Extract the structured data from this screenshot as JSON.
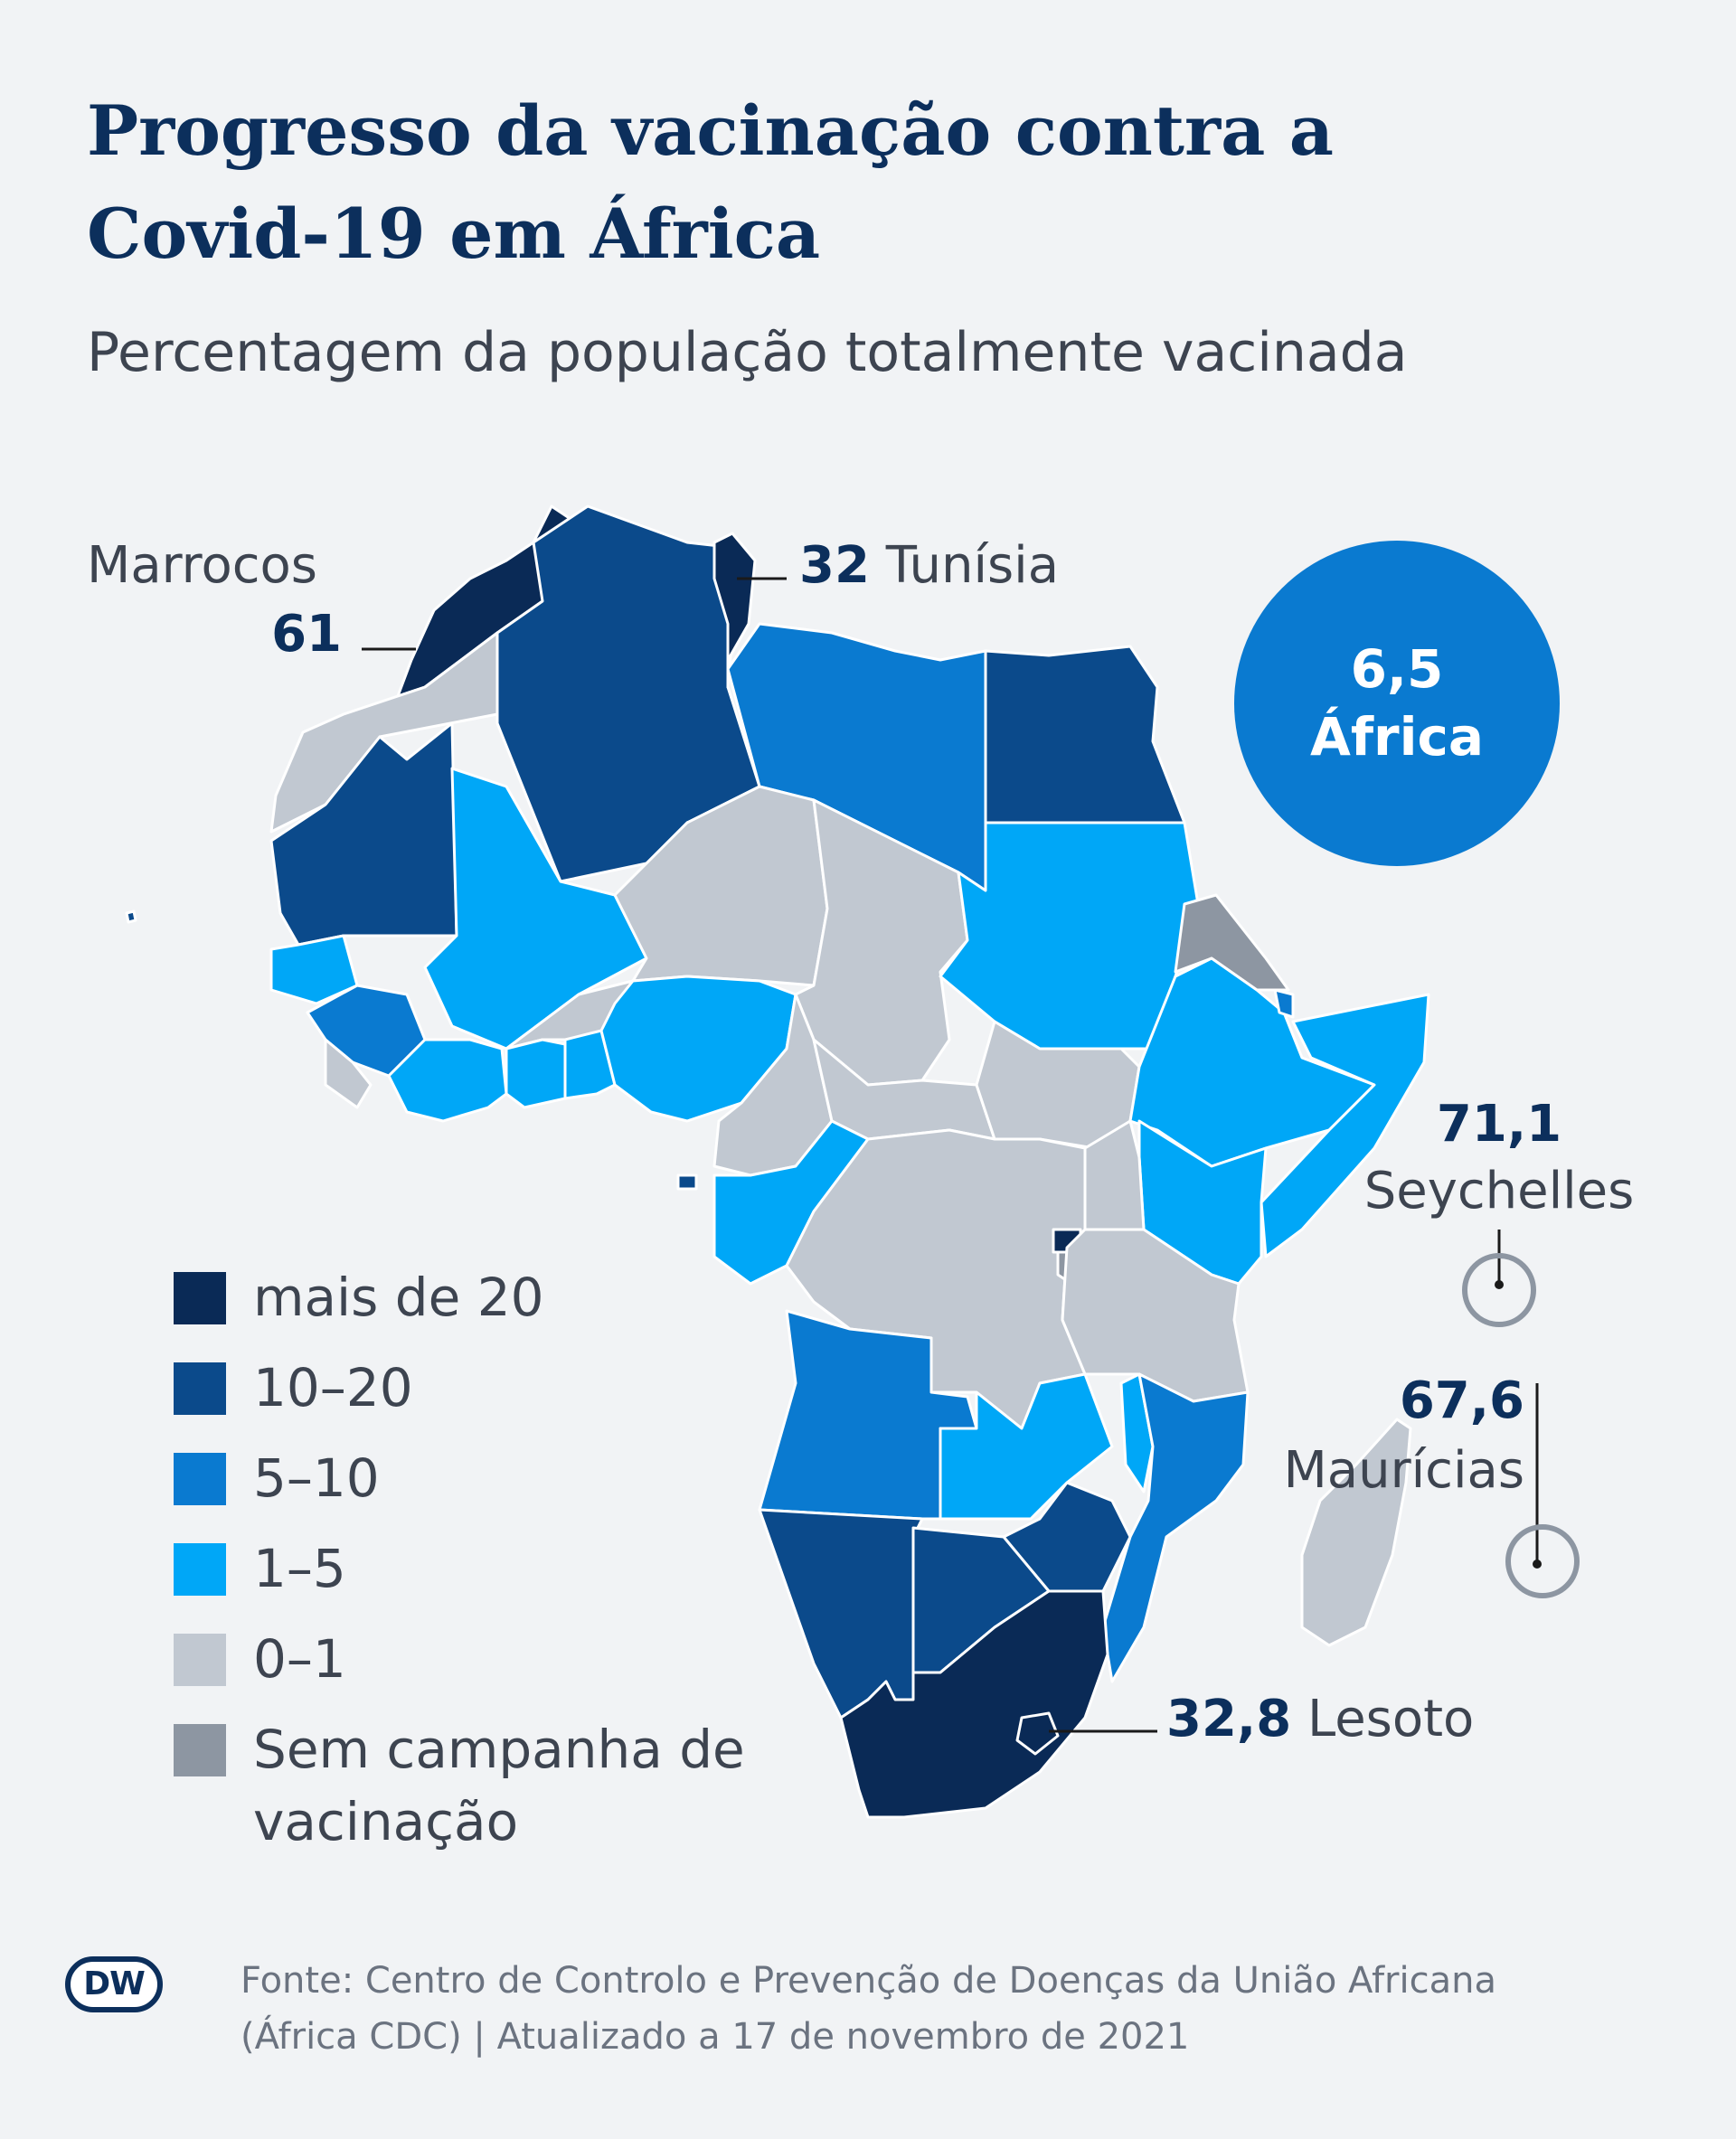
{
  "header": {
    "title": "Progresso da vacinação contra a Covid-19 em África",
    "subtitle": "Percentagem da população totalmente vacinada"
  },
  "map": {
    "africa_total": {
      "value": "6,5",
      "label": "África"
    },
    "callouts": [
      {
        "id": "marrocos",
        "value": "61",
        "name": "Marrocos"
      },
      {
        "id": "tunisia",
        "value": "32",
        "name": "Tunísia"
      },
      {
        "id": "seychelles",
        "value": "71,1",
        "name": "Seychelles"
      },
      {
        "id": "mauricias",
        "value": "67,6",
        "name": "Maurícias"
      },
      {
        "id": "lesoto",
        "value": "32,8",
        "name": "Lesoto"
      }
    ]
  },
  "legend": {
    "items": [
      {
        "label": "mais de 20",
        "color": "#0a2a56"
      },
      {
        "label": "10–20",
        "color": "#0b4a8b"
      },
      {
        "label": "5–10",
        "color": "#0a7ad0"
      },
      {
        "label": "1–5",
        "color": "#00a7f7"
      },
      {
        "label": "0–1",
        "color": "#c1c8d1"
      },
      {
        "label": "Sem campanha de vacinação",
        "color": "#8d96a2"
      }
    ]
  },
  "footer": {
    "logo": "DW",
    "source": "Fonte: Centro de Controlo e Prevenção de Doenças da União Africana (África CDC) | Atualizado a 17 de novembro de 2021"
  }
}
